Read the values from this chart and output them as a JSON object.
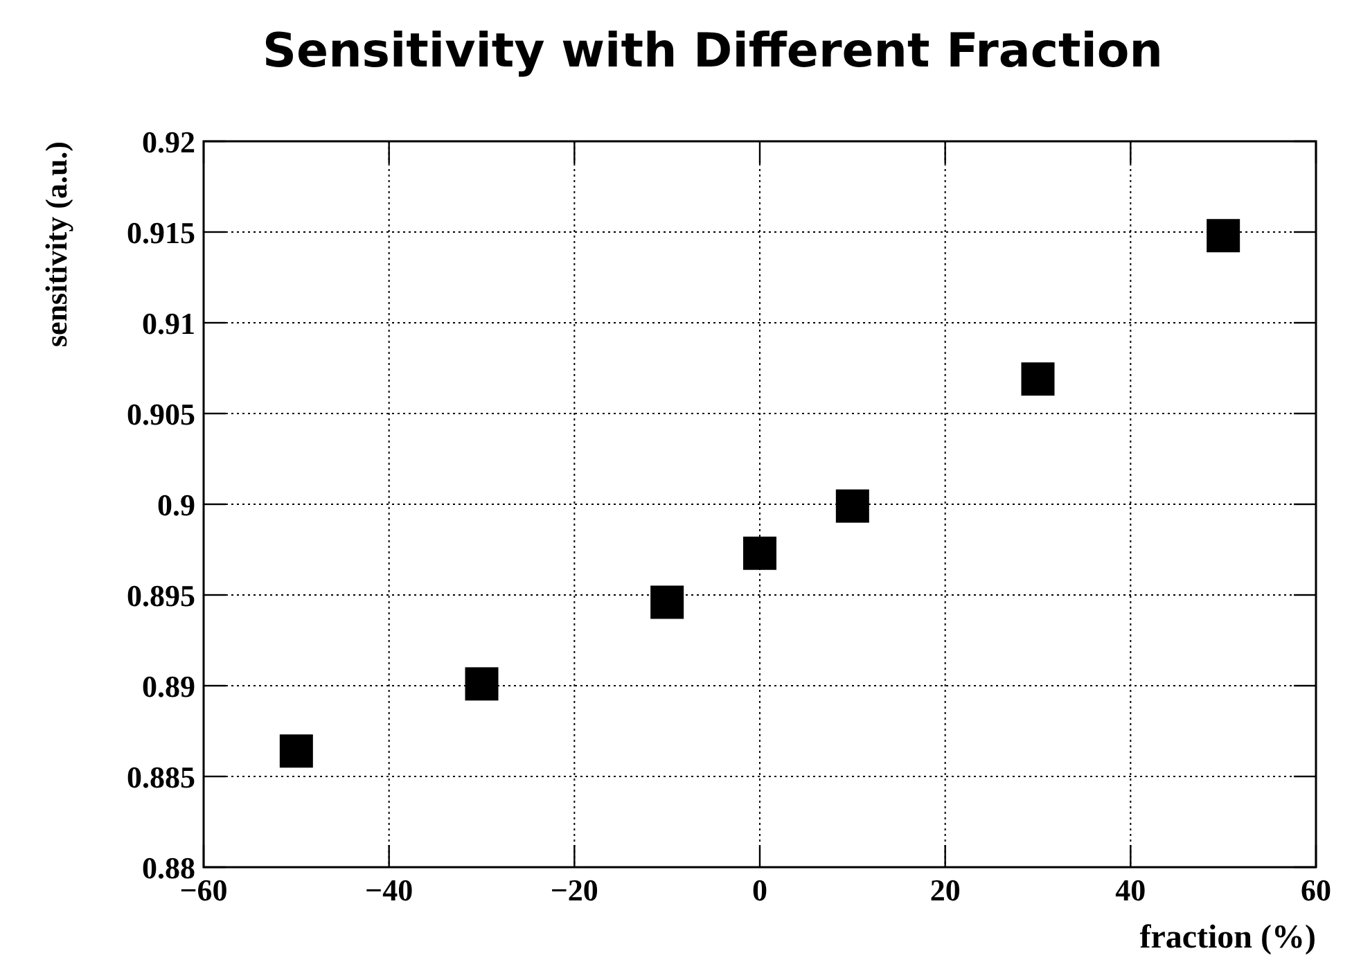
{
  "chart_data": {
    "type": "scatter",
    "title": "Sensitivity with Different Fraction",
    "xlabel": "fraction (%)",
    "ylabel": "sensitivity (a.u.)",
    "x": [
      -50,
      -30,
      -10,
      0,
      10,
      30,
      50
    ],
    "series": [
      {
        "color": "#000000",
        "values": [
          0.8864,
          0.8901,
          0.8946,
          0.8973,
          0.8999,
          0.9069,
          0.9148
        ]
      }
    ],
    "xlim": [
      -60,
      60
    ],
    "xticks": [
      -60,
      -40,
      -20,
      0,
      20,
      40,
      60
    ],
    "ylim": [
      0.88,
      0.92
    ],
    "yticks": [
      0.88,
      0.885,
      0.89,
      0.895,
      0.9,
      0.905,
      0.91,
      0.915,
      0.92
    ],
    "grid": true,
    "marker": "square"
  }
}
